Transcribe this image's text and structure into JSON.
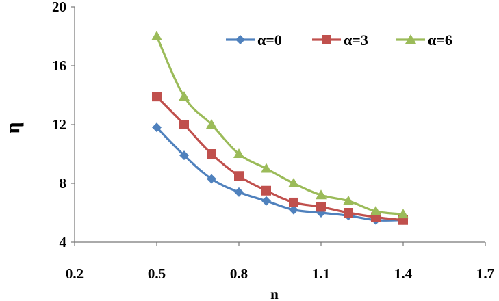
{
  "chart_data": {
    "type": "line",
    "xlabel": "n",
    "ylabel": "η",
    "xlim": [
      0.2,
      1.7
    ],
    "ylim": [
      4,
      20
    ],
    "xticks": [
      "0.2",
      "0.5",
      "0.8",
      "1.1",
      "1.4",
      "1.7"
    ],
    "yticks": [
      "4",
      "8",
      "12",
      "16",
      "20"
    ],
    "grid": false,
    "legend_position": "top-right",
    "x": [
      0.5,
      0.6,
      0.7,
      0.8,
      0.9,
      1.0,
      1.1,
      1.2,
      1.3,
      1.4
    ],
    "series": [
      {
        "name": "α=0",
        "marker": "diamond",
        "color": "#4f81bd",
        "values": [
          11.8,
          9.9,
          8.3,
          7.4,
          6.8,
          6.2,
          6.0,
          5.8,
          5.5,
          5.5
        ]
      },
      {
        "name": "α=3",
        "marker": "square",
        "color": "#c0504d",
        "values": [
          13.9,
          12.0,
          10.0,
          8.5,
          7.5,
          6.7,
          6.4,
          6.0,
          5.7,
          5.5
        ]
      },
      {
        "name": "α=6",
        "marker": "triangle",
        "color": "#9bbb59",
        "values": [
          18.0,
          13.9,
          12.0,
          10.0,
          9.0,
          8.0,
          7.2,
          6.8,
          6.1,
          5.9
        ]
      }
    ]
  }
}
